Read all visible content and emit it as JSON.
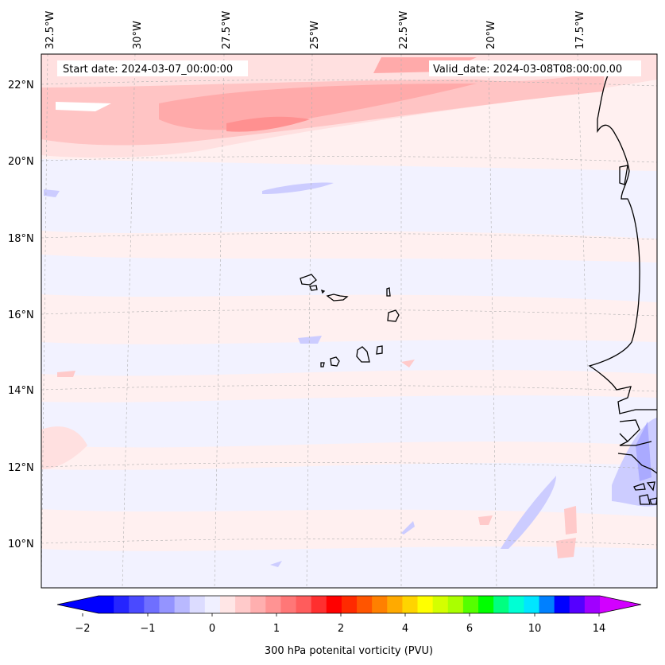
{
  "map": {
    "start_date_text": "Start date: 2024-03-07_00:00:00",
    "valid_date_text": "Valid_date: 2024-03-08T08:00:00.00",
    "lon_labels": [
      "32.5°W",
      "30°W",
      "27.5°W",
      "25°W",
      "22.5°W",
      "20°W",
      "17.5°W"
    ],
    "lat_labels": [
      "22°N",
      "20°N",
      "18°N",
      "16°N",
      "14°N",
      "12°N",
      "10°N"
    ],
    "coast_color": "#000000",
    "grid_color": "#b0b0b0"
  },
  "colorbar": {
    "label": "300 hPa potenital vorticity (PVU)",
    "tick_labels": [
      "−2",
      "−1",
      "0",
      "1",
      "2",
      "4",
      "6",
      "10",
      "14"
    ],
    "colors": [
      "#0000ff",
      "#2525ff",
      "#4a4aff",
      "#6f6fff",
      "#9494ff",
      "#b9b9ff",
      "#dcdcff",
      "#f0f0ff",
      "#ffe6e6",
      "#ffcaca",
      "#ffafaf",
      "#ff9393",
      "#ff7777",
      "#ff5c5c",
      "#ff2f2f",
      "#ff0000",
      "#ff2a00",
      "#ff5500",
      "#ff8000",
      "#ffaa00",
      "#ffd400",
      "#ffff00",
      "#d4ff00",
      "#aaff00",
      "#55ff00",
      "#00ff00",
      "#00ff80",
      "#00ffd4",
      "#00e6ff",
      "#0080ff",
      "#0000ff",
      "#5500ff",
      "#a000ff"
    ],
    "under_color": "#0000ff",
    "over_color": "#d200ff"
  }
}
